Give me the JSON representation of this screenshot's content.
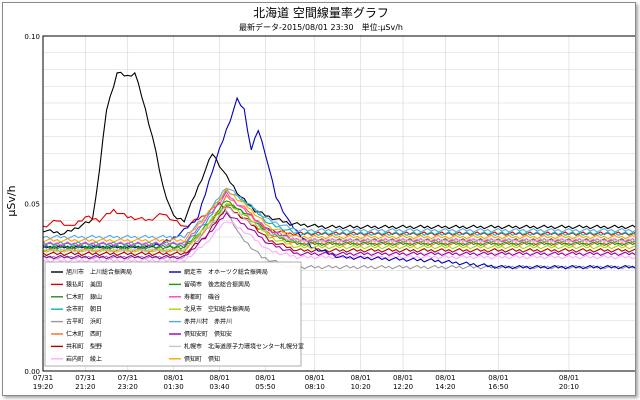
{
  "chart_data": {
    "type": "line",
    "title": "北海道 空間線量率グラフ",
    "subtitle": "最新データ-2015/08/01 23:30　単位:μSv/h",
    "ylabel": "μSv/h",
    "xlabel": "",
    "ylim": [
      0,
      0.1
    ],
    "yticks": [
      "0.00",
      "0.05",
      "0.10"
    ],
    "grid": true,
    "legend_position": "bottom-left",
    "x_ticks": [
      {
        "date": "07/31",
        "time": "19:20",
        "i": 0
      },
      {
        "date": "07/31",
        "time": "21:20",
        "i": 12
      },
      {
        "date": "07/31",
        "time": "23:20",
        "i": 24
      },
      {
        "date": "08/01",
        "time": "01:30",
        "i": 37
      },
      {
        "date": "08/01",
        "time": "03:40",
        "i": 50
      },
      {
        "date": "08/01",
        "time": "05:50",
        "i": 63
      },
      {
        "date": "08/01",
        "time": "08:10",
        "i": 77
      },
      {
        "date": "08/01",
        "time": "10:20",
        "i": 90
      },
      {
        "date": "08/01",
        "time": "12:20",
        "i": 102
      },
      {
        "date": "08/01",
        "time": "14:20",
        "i": 114
      },
      {
        "date": "08/01",
        "time": "16:50",
        "i": 129
      },
      {
        "date": "08/01",
        "time": "20:10",
        "i": 149
      }
    ],
    "n_points": 169,
    "series": [
      {
        "name": "旭川市　上川総合振興局",
        "color": "#000000",
        "keys": [
          [
            0,
            0.042
          ],
          [
            6,
            0.041
          ],
          [
            10,
            0.043
          ],
          [
            14,
            0.045
          ],
          [
            16,
            0.06
          ],
          [
            18,
            0.078
          ],
          [
            21,
            0.089
          ],
          [
            24,
            0.088
          ],
          [
            26,
            0.089
          ],
          [
            28,
            0.082
          ],
          [
            31,
            0.07
          ],
          [
            34,
            0.055
          ],
          [
            37,
            0.046
          ],
          [
            40,
            0.045
          ],
          [
            44,
            0.055
          ],
          [
            48,
            0.065
          ],
          [
            52,
            0.058
          ],
          [
            56,
            0.052
          ],
          [
            60,
            0.048
          ],
          [
            64,
            0.046
          ],
          [
            70,
            0.044
          ],
          [
            80,
            0.043
          ],
          [
            168,
            0.043
          ]
        ]
      },
      {
        "name": "猿払町　美国",
        "color": "#e00000",
        "keys": [
          [
            0,
            0.043
          ],
          [
            4,
            0.045
          ],
          [
            8,
            0.043
          ],
          [
            12,
            0.046
          ],
          [
            16,
            0.045
          ],
          [
            20,
            0.048
          ],
          [
            24,
            0.046
          ],
          [
            30,
            0.045
          ],
          [
            34,
            0.047
          ],
          [
            40,
            0.043
          ],
          [
            45,
            0.046
          ],
          [
            50,
            0.05
          ],
          [
            55,
            0.047
          ],
          [
            60,
            0.043
          ],
          [
            70,
            0.041
          ],
          [
            168,
            0.041
          ]
        ]
      },
      {
        "name": "仁木町　銀山",
        "color": "#2a8a2a",
        "keys": [
          [
            0,
            0.037
          ],
          [
            40,
            0.037
          ],
          [
            46,
            0.042
          ],
          [
            52,
            0.05
          ],
          [
            58,
            0.047
          ],
          [
            64,
            0.042
          ],
          [
            72,
            0.039
          ],
          [
            168,
            0.039
          ]
        ]
      },
      {
        "name": "余市町　朝日",
        "color": "#00b8b8",
        "keys": [
          [
            0,
            0.038
          ],
          [
            40,
            0.038
          ],
          [
            46,
            0.044
          ],
          [
            52,
            0.054
          ],
          [
            58,
            0.05
          ],
          [
            64,
            0.044
          ],
          [
            72,
            0.041
          ],
          [
            168,
            0.041
          ]
        ]
      },
      {
        "name": "古平町　浜町",
        "color": "#9a9a9a",
        "keys": [
          [
            0,
            0.034
          ],
          [
            40,
            0.034
          ],
          [
            46,
            0.042
          ],
          [
            52,
            0.048
          ],
          [
            56,
            0.04
          ],
          [
            62,
            0.034
          ],
          [
            70,
            0.031
          ],
          [
            168,
            0.031
          ]
        ]
      },
      {
        "name": "仁木町　西町",
        "color": "#ff6a1a",
        "keys": [
          [
            0,
            0.036
          ],
          [
            40,
            0.036
          ],
          [
            46,
            0.042
          ],
          [
            52,
            0.052
          ],
          [
            58,
            0.048
          ],
          [
            64,
            0.041
          ],
          [
            72,
            0.038
          ],
          [
            168,
            0.038
          ]
        ]
      },
      {
        "name": "共和町　梨野",
        "color": "#b00000",
        "keys": [
          [
            0,
            0.035
          ],
          [
            40,
            0.035
          ],
          [
            46,
            0.04
          ],
          [
            52,
            0.049
          ],
          [
            58,
            0.045
          ],
          [
            64,
            0.039
          ],
          [
            72,
            0.036
          ],
          [
            168,
            0.036
          ]
        ]
      },
      {
        "name": "岩内町　綾上",
        "color": "#ffaaff",
        "keys": [
          [
            0,
            0.033
          ],
          [
            40,
            0.033
          ],
          [
            46,
            0.038
          ],
          [
            52,
            0.045
          ],
          [
            58,
            0.041
          ],
          [
            64,
            0.036
          ],
          [
            72,
            0.034
          ],
          [
            168,
            0.034
          ]
        ]
      },
      {
        "name": "網走市　オホーツク総合振興局",
        "color": "#0000c0",
        "keys": [
          [
            0,
            0.037
          ],
          [
            30,
            0.037
          ],
          [
            36,
            0.039
          ],
          [
            40,
            0.042
          ],
          [
            44,
            0.046
          ],
          [
            48,
            0.06
          ],
          [
            52,
            0.072
          ],
          [
            55,
            0.081
          ],
          [
            57,
            0.078
          ],
          [
            59,
            0.066
          ],
          [
            61,
            0.072
          ],
          [
            63,
            0.065
          ],
          [
            66,
            0.052
          ],
          [
            70,
            0.044
          ],
          [
            76,
            0.037
          ],
          [
            84,
            0.034
          ],
          [
            110,
            0.033
          ],
          [
            130,
            0.031
          ],
          [
            168,
            0.031
          ]
        ]
      },
      {
        "name": "留萌市　後志総合振興局",
        "color": "#0e9e0e",
        "keys": [
          [
            0,
            0.037
          ],
          [
            40,
            0.037
          ],
          [
            46,
            0.043
          ],
          [
            52,
            0.051
          ],
          [
            58,
            0.046
          ],
          [
            64,
            0.041
          ],
          [
            72,
            0.038
          ],
          [
            168,
            0.038
          ]
        ]
      },
      {
        "name": "寿都町　磯谷",
        "color": "#ff3ad8",
        "keys": [
          [
            0,
            0.038
          ],
          [
            40,
            0.038
          ],
          [
            46,
            0.045
          ],
          [
            52,
            0.053
          ],
          [
            58,
            0.047
          ],
          [
            64,
            0.042
          ],
          [
            72,
            0.039
          ],
          [
            168,
            0.039
          ]
        ]
      },
      {
        "name": "北見市　空知総合振興局",
        "color": "#aad400",
        "keys": [
          [
            0,
            0.036
          ],
          [
            40,
            0.036
          ],
          [
            46,
            0.043
          ],
          [
            52,
            0.05
          ],
          [
            58,
            0.046
          ],
          [
            64,
            0.04
          ],
          [
            72,
            0.037
          ],
          [
            168,
            0.037
          ]
        ]
      },
      {
        "name": "赤井川村　赤井川",
        "color": "#58a8e0",
        "keys": [
          [
            0,
            0.04
          ],
          [
            40,
            0.04
          ],
          [
            46,
            0.046
          ],
          [
            52,
            0.055
          ],
          [
            58,
            0.05
          ],
          [
            64,
            0.045
          ],
          [
            72,
            0.042
          ],
          [
            168,
            0.042
          ]
        ]
      },
      {
        "name": "倶知安町　倶知安",
        "color": "#9a00b0",
        "keys": [
          [
            0,
            0.034
          ],
          [
            40,
            0.034
          ],
          [
            46,
            0.04
          ],
          [
            52,
            0.047
          ],
          [
            58,
            0.043
          ],
          [
            64,
            0.038
          ],
          [
            72,
            0.035
          ],
          [
            168,
            0.035
          ]
        ]
      },
      {
        "name": "札幌市　北海道原子力環境センター札幌分室",
        "color": "#c8c8c8",
        "keys": [
          [
            0,
            0.036
          ],
          [
            40,
            0.036
          ],
          [
            46,
            0.042
          ],
          [
            52,
            0.049
          ],
          [
            58,
            0.045
          ],
          [
            64,
            0.041
          ],
          [
            72,
            0.039
          ],
          [
            168,
            0.039
          ]
        ]
      },
      {
        "name": "倶知町　倶知",
        "color": "#ffa000",
        "keys": [
          [
            0,
            0.039
          ],
          [
            40,
            0.039
          ],
          [
            46,
            0.046
          ],
          [
            52,
            0.054
          ],
          [
            58,
            0.049
          ],
          [
            64,
            0.043
          ],
          [
            72,
            0.04
          ],
          [
            168,
            0.04
          ]
        ]
      }
    ]
  }
}
